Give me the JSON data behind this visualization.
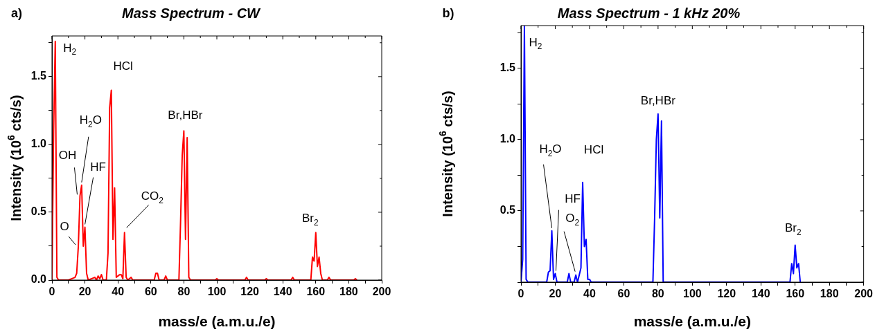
{
  "chart_data": [
    {
      "type": "line",
      "title": "Mass Spectrum - CW",
      "xlabel": "mass/e (a.m.u./e)",
      "ylabel": "Intensity (10$^{6}$ cts/s)",
      "color": "#ff0000",
      "marker": "none",
      "line_style": "solid",
      "grid": false,
      "legend": false,
      "x": [
        0,
        1,
        2,
        3,
        4,
        10,
        14,
        15,
        16,
        17,
        18,
        19,
        20,
        21,
        22,
        26,
        27,
        28,
        29,
        30,
        31,
        33,
        34,
        35,
        36,
        37,
        38,
        39,
        40,
        41,
        42,
        43,
        44,
        45,
        46,
        48,
        49,
        62,
        63,
        64,
        65,
        68,
        69,
        70,
        77,
        78,
        79,
        80,
        81,
        82,
        83,
        84,
        99,
        100,
        101,
        117,
        118,
        119,
        129,
        130,
        131,
        145,
        146,
        147,
        157,
        158,
        159,
        160,
        161,
        162,
        163,
        164,
        167,
        168,
        169,
        183,
        184,
        185
      ],
      "values": [
        0,
        1.1,
        1.76,
        0.02,
        0,
        0,
        0.02,
        0.05,
        0.25,
        0.62,
        0.7,
        0.25,
        0.39,
        0.05,
        0,
        0.02,
        0,
        0.03,
        0.01,
        0.04,
        0,
        0,
        0.2,
        1.27,
        1.4,
        0.3,
        0.68,
        0.02,
        0.03,
        0.04,
        0.04,
        0.01,
        0.35,
        0.02,
        0,
        0.02,
        0,
        0,
        0.05,
        0.05,
        0,
        0,
        0.03,
        0,
        0,
        0.43,
        0.92,
        1.1,
        0.3,
        1.05,
        0.02,
        0,
        0,
        0.01,
        0,
        0,
        0.02,
        0,
        0,
        0.01,
        0,
        0,
        0.02,
        0,
        0,
        0.17,
        0.14,
        0.35,
        0.1,
        0.17,
        0.05,
        0,
        0,
        0.02,
        0,
        0,
        0.01,
        0
      ],
      "xlim": [
        0,
        200
      ],
      "xticks": [
        0,
        {
          "value": 10,
          "label": null
        },
        20,
        {
          "value": 30,
          "label": null
        },
        40,
        {
          "value": 50,
          "label": null
        },
        60,
        {
          "value": 70,
          "label": null
        },
        80,
        {
          "value": 90,
          "label": null
        },
        100,
        {
          "value": 110,
          "label": null
        },
        120,
        {
          "value": 130,
          "label": null
        },
        140,
        {
          "value": 150,
          "label": null
        },
        160,
        {
          "value": 170,
          "label": null
        },
        180,
        {
          "value": 190,
          "label": null
        },
        200
      ],
      "ylim": [
        0,
        1.8
      ],
      "yticks": [
        {
          "value": 0,
          "label": "0.0"
        },
        {
          "value": 0.25,
          "label": null
        },
        {
          "value": 0.5,
          "label": "0.5"
        },
        {
          "value": 0.75,
          "label": null
        },
        {
          "value": 1,
          "label": "1.0"
        },
        {
          "value": 1.25,
          "label": null
        },
        {
          "value": 1.5,
          "label": "1.5"
        },
        {
          "value": 1.75,
          "label": null
        }
      ],
      "annotations": [
        "a)",
        {
          "text": "H$_{2}$",
          "x": 2,
          "y": 1.76
        },
        {
          "text": "HCl",
          "x": 36,
          "y": 1.4
        },
        {
          "text": "Br,HBr",
          "x": 80,
          "y": 1.1
        },
        {
          "text": "Br$_{2}$",
          "x": 160,
          "y": 0.35
        },
        {
          "text": "O",
          "x": 16,
          "y": 0.25
        },
        {
          "text": "OH",
          "x": 17,
          "y": 0.6
        },
        {
          "text": "H$_{2}$O",
          "x": 18,
          "y": 0.7
        },
        {
          "text": "HF",
          "x": 20,
          "y": 0.39
        },
        {
          "text": "CO$_{2}$",
          "x": 44,
          "y": 0.35
        }
      ]
    },
    {
      "type": "line",
      "title": "Mass Spectrum - 1 kHz 20%",
      "xlabel": "mass/e (a.m.u./e)",
      "ylabel": "Intensity (10$^{6}$ cts/s)",
      "color": "#0000ff",
      "marker": "none",
      "line_style": "solid",
      "grid": false,
      "legend": false,
      "x": [
        0,
        1,
        2,
        3,
        4,
        15,
        16,
        17,
        18,
        19,
        20,
        21,
        27,
        28,
        29,
        31,
        32,
        33,
        34,
        35,
        36,
        37,
        38,
        39,
        40,
        41,
        77,
        78,
        79,
        80,
        81,
        82,
        83,
        157,
        158,
        159,
        160,
        161,
        162,
        163
      ],
      "values": [
        0,
        0.16,
        1.8,
        0.02,
        0,
        0,
        0.07,
        0.08,
        0.36,
        0.02,
        0.06,
        0,
        0,
        0.06,
        0,
        0,
        0.05,
        0,
        0.05,
        0.1,
        0.7,
        0.25,
        0.3,
        0.02,
        0.02,
        0,
        0,
        0.45,
        1.0,
        1.18,
        0.45,
        1.13,
        0,
        0,
        0.13,
        0.06,
        0.26,
        0.1,
        0.13,
        0
      ],
      "xlim": [
        0,
        200
      ],
      "xticks": [
        0,
        {
          "value": 10,
          "label": null
        },
        20,
        {
          "value": 30,
          "label": null
        },
        40,
        {
          "value": 50,
          "label": null
        },
        60,
        {
          "value": 70,
          "label": null
        },
        80,
        {
          "value": 90,
          "label": null
        },
        100,
        {
          "value": 110,
          "label": null
        },
        120,
        {
          "value": 130,
          "label": null
        },
        140,
        {
          "value": 150,
          "label": null
        },
        160,
        {
          "value": 170,
          "label": null
        },
        180,
        {
          "value": 190,
          "label": null
        },
        200
      ],
      "ylim": [
        0,
        1.8
      ],
      "yticks": [
        {
          "value": 0,
          "label": null
        },
        {
          "value": 0.25,
          "label": null
        },
        {
          "value": 0.5,
          "label": "0.5"
        },
        {
          "value": 0.75,
          "label": null
        },
        {
          "value": 1,
          "label": "1.0"
        },
        {
          "value": 1.25,
          "label": null
        },
        {
          "value": 1.5,
          "label": "1.5"
        },
        {
          "value": 1.75,
          "label": null
        }
      ],
      "annotations": [
        "b)",
        {
          "text": "H$_{2}$",
          "x": 2,
          "y": 1.8
        },
        {
          "text": "HCl",
          "x": 36,
          "y": 0.7
        },
        {
          "text": "Br,HBr",
          "x": 80,
          "y": 1.18
        },
        {
          "text": "Br$_{2}$",
          "x": 160,
          "y": 0.26
        },
        {
          "text": "H$_{2}$O",
          "x": 18,
          "y": 0.36
        },
        {
          "text": "HF",
          "x": 20,
          "y": 0.06
        },
        {
          "text": "O$_{2}$",
          "x": 32,
          "y": 0.05
        }
      ]
    }
  ]
}
